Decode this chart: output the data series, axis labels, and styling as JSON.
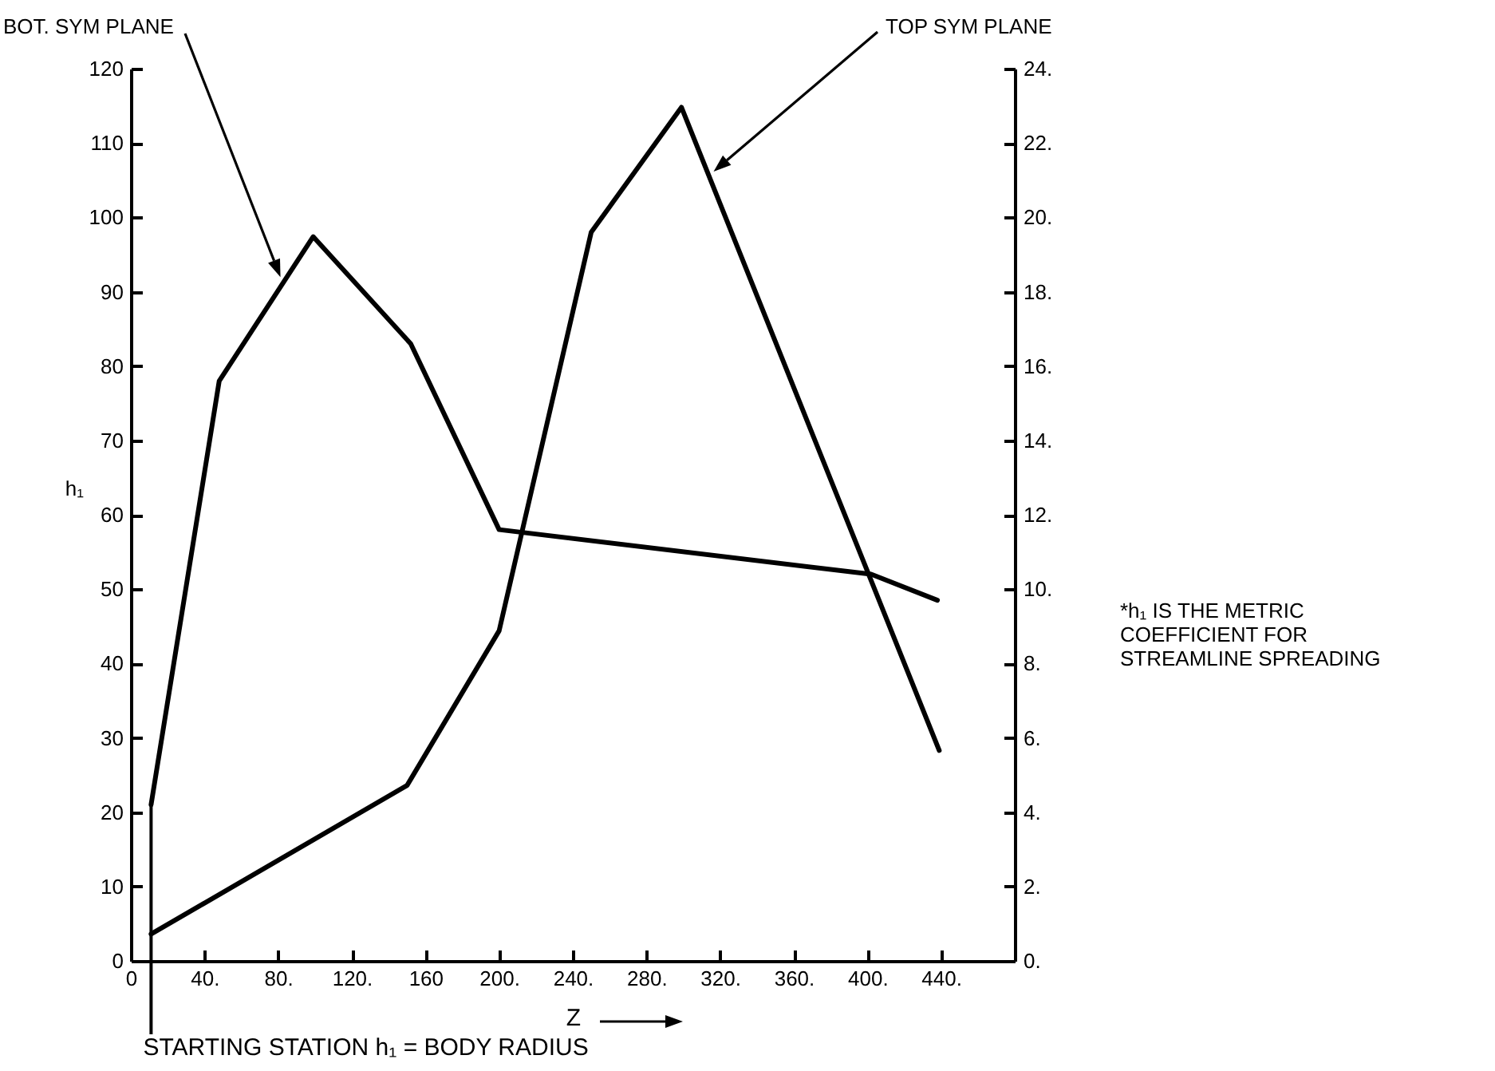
{
  "chart_data": {
    "type": "line",
    "ylabel": "h₁",
    "xlabel": "Z",
    "x": [
      11,
      48,
      99,
      152,
      200,
      402,
      438
    ],
    "series": [
      {
        "name": "BOT. SYM PLANE",
        "color": "#000000",
        "values": [
          21,
          78,
          97.4,
          83,
          58,
          52,
          48.5
        ]
      },
      {
        "name": "TOP SYM PLANE",
        "color": "#000000",
        "x": [
          11,
          150,
          200,
          250,
          299,
          439
        ],
        "values": [
          3.6,
          23.6,
          44.4,
          98,
          114.8,
          28.3
        ]
      }
    ],
    "xlim": [
      0,
      480
    ],
    "xticks": [
      0,
      {
        "value": 40,
        "label": "40."
      },
      {
        "value": 80,
        "label": "80."
      },
      {
        "value": 120,
        "label": "120."
      },
      {
        "value": 160,
        "label": "160"
      },
      {
        "value": 200,
        "label": "200."
      },
      {
        "value": 240,
        "label": "240."
      },
      {
        "value": 280,
        "label": "280."
      },
      {
        "value": 320,
        "label": "320."
      },
      {
        "value": 360,
        "label": "360."
      },
      {
        "value": 400,
        "label": "400."
      },
      {
        "value": 440,
        "label": "440."
      }
    ],
    "ylim": [
      0,
      120
    ],
    "yticks": [
      0,
      10,
      20,
      30,
      40,
      50,
      60,
      70,
      80,
      90,
      100,
      110,
      120
    ],
    "y2lim": [
      0,
      24
    ],
    "y2ticks": [
      {
        "value": 0,
        "label": "0."
      },
      {
        "value": 2,
        "label": "2."
      },
      {
        "value": 4,
        "label": "4."
      },
      {
        "value": 6,
        "label": "6."
      },
      {
        "value": 8,
        "label": "8."
      },
      {
        "value": 10,
        "label": "10."
      },
      {
        "value": 12,
        "label": "12."
      },
      {
        "value": 14,
        "label": "14."
      },
      {
        "value": 16,
        "label": "16."
      },
      {
        "value": 18,
        "label": "18."
      },
      {
        "value": 20,
        "label": "20."
      },
      {
        "value": 22,
        "label": "22."
      },
      {
        "value": 24,
        "label": "24."
      }
    ],
    "ref_lines": [
      {
        "axis": "x",
        "value": 11,
        "label": "STARTING STATION h₁ = BODY RADIUS"
      }
    ],
    "annotations": [
      "*h₁ IS THE METRIC COEFFICIENT FOR STREAMLINE SPREADING"
    ]
  }
}
